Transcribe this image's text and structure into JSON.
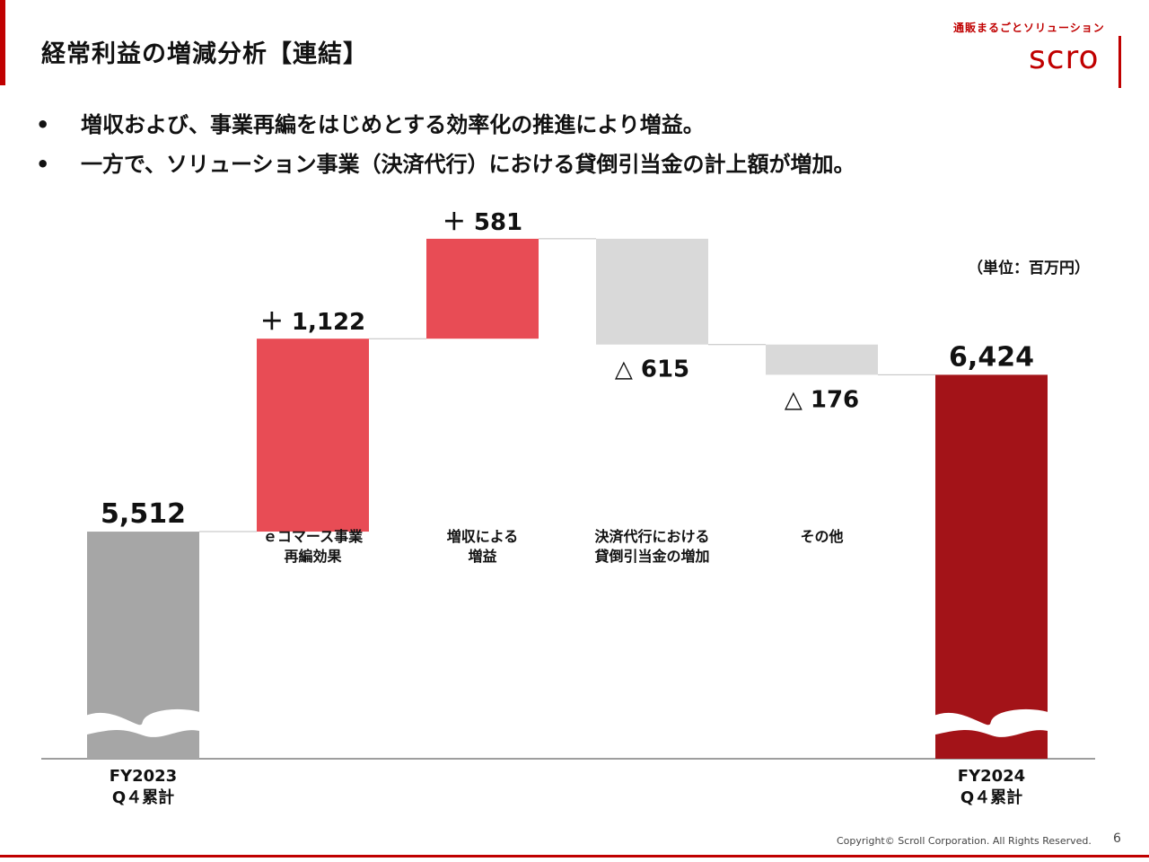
{
  "header": {
    "title": "経常利益の増減分析【連結】",
    "logo_tagline": "通販まるごとソリューション",
    "logo_text": "scro"
  },
  "bullets": [
    {
      "marker": "•",
      "text": "増収および、事業再編をはじめとする効率化の推進により増益。"
    },
    {
      "marker": "•",
      "text": "一方で、ソリューション事業（決済代行）における貸倒引当金の計上額が増加。"
    }
  ],
  "unit_label": "（単位：百万円）",
  "chart_data": {
    "type": "bar",
    "subtype": "waterfall",
    "axis_break": true,
    "steps": [
      {
        "kind": "total",
        "value": 5512,
        "value_label": "5,512",
        "category": [
          "FY2023",
          "Q４累計"
        ],
        "color": "#a6a6a6"
      },
      {
        "kind": "delta",
        "value": 1122,
        "value_label": "＋ 1,122",
        "category": [
          "ｅコマース事業",
          "再編効果"
        ],
        "color": "#e84c55"
      },
      {
        "kind": "delta",
        "value": 581,
        "value_label": "＋ 581",
        "category": [
          "増収による",
          "増益"
        ],
        "color": "#e84c55"
      },
      {
        "kind": "delta",
        "value": -615,
        "value_label": "△ 615",
        "category": [
          "決済代行における",
          "貸倒引当金の増加"
        ],
        "color": "#d9d9d9"
      },
      {
        "kind": "delta",
        "value": -176,
        "value_label": "△ 176",
        "category": [
          "その他"
        ],
        "color": "#d9d9d9"
      },
      {
        "kind": "total",
        "value": 6424,
        "value_label": "6,424",
        "category": [
          "FY2024",
          "Q４累計"
        ],
        "color": "#a31318"
      }
    ]
  },
  "footer": {
    "copyright": "Copyright© Scroll Corporation. All Rights Reserved.",
    "page_number": "6"
  },
  "colors": {
    "brand": "#c00000",
    "increase": "#e84c55",
    "decrease": "#d9d9d9",
    "start_total": "#a6a6a6",
    "end_total": "#a31318"
  }
}
